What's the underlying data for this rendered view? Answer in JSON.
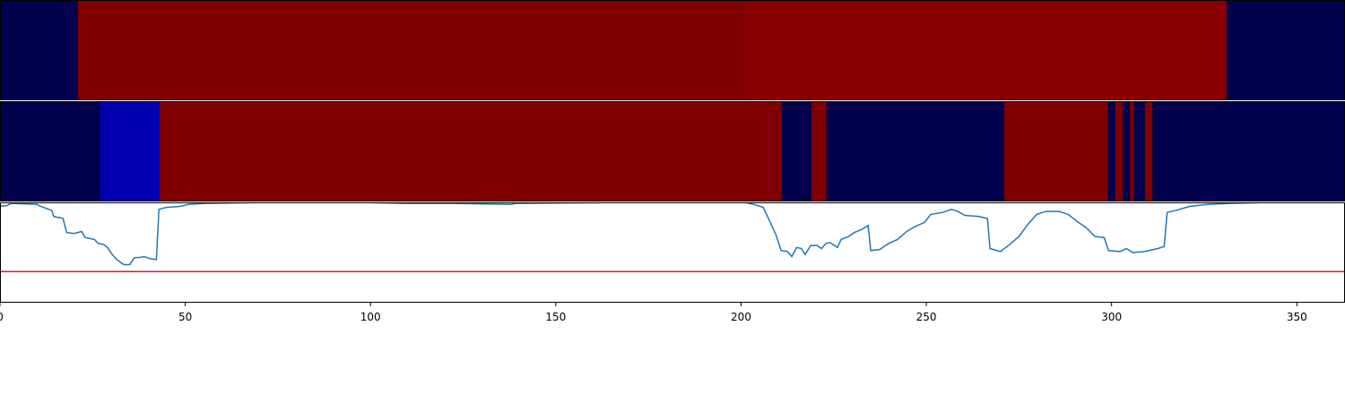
{
  "chart_data": [
    {
      "type": "strip",
      "xlim": [
        0,
        363
      ],
      "bins": [
        0,
        21,
        201,
        331,
        363
      ],
      "colors": [
        "#00004c",
        "#7f0000",
        "#8a0000",
        "#00004c"
      ]
    },
    {
      "type": "strip",
      "xlim": [
        0,
        363
      ],
      "bins": [
        0,
        27,
        43,
        211,
        219,
        223,
        271,
        299,
        301,
        303,
        305,
        306,
        309,
        311,
        363
      ],
      "colors": [
        "#00004c",
        "#0000b0",
        "#7f0000",
        "#00004c",
        "#7f0000",
        "#00004c",
        "#7f0000",
        "#00004c",
        "#7f0000",
        "#00004c",
        "#7f0000",
        "#00004c",
        "#7f0000",
        "#00004c"
      ]
    },
    {
      "type": "line",
      "xlim": [
        0,
        363
      ],
      "ylim": [
        0,
        1
      ],
      "xticks": [
        0,
        50,
        100,
        150,
        200,
        250,
        300,
        350
      ],
      "x": [
        0,
        2,
        3,
        10,
        11,
        14,
        14.5,
        17,
        18,
        20,
        22,
        23,
        25.5,
        26.5,
        28,
        29,
        30.3,
        31.5,
        33.4,
        35,
        36.3,
        37.5,
        38.8,
        40.5,
        42.2,
        42.9,
        44.8,
        48.5,
        50.9,
        55.7,
        72.7,
        97,
        109,
        121,
        138,
        139,
        170,
        201,
        203.5,
        206,
        207.4,
        209.5,
        210.8,
        212.5,
        213.7,
        215,
        216.3,
        217.3,
        218.8,
        220.5,
        221.7,
        222.9,
        224,
        226,
        227,
        229,
        230.6,
        232.6,
        234.3,
        235,
        237.4,
        239.8,
        242.2,
        244.7,
        247,
        249.5,
        251.2,
        254.4,
        256.8,
        258.5,
        260.4,
        264,
        266.5,
        267.2,
        270,
        272.5,
        275,
        277.4,
        279.8,
        282.2,
        285.9,
        288.3,
        290.7,
        293.1,
        295.5,
        298,
        299.2,
        302.3,
        304,
        305.7,
        308.9,
        312.5,
        314.2,
        315,
        317.4,
        321,
        325.8,
        331.9,
        344,
        363
      ],
      "series": [
        {
          "color": "#1f77b4",
          "values": [
            0.96,
            0.97,
            0.99,
            0.98,
            0.96,
            0.92,
            0.86,
            0.84,
            0.7,
            0.69,
            0.71,
            0.65,
            0.63,
            0.59,
            0.58,
            0.55,
            0.48,
            0.43,
            0.38,
            0.38,
            0.45,
            0.45,
            0.46,
            0.44,
            0.43,
            0.93,
            0.95,
            0.96,
            0.98,
            0.99,
            1.0,
            1.0,
            0.99,
            0.99,
            0.98,
            0.99,
            1.0,
            1.0,
            0.98,
            0.95,
            0.84,
            0.67,
            0.52,
            0.51,
            0.46,
            0.55,
            0.54,
            0.48,
            0.57,
            0.57,
            0.54,
            0.59,
            0.6,
            0.55,
            0.63,
            0.66,
            0.7,
            0.73,
            0.77,
            0.52,
            0.53,
            0.59,
            0.63,
            0.71,
            0.76,
            0.8,
            0.88,
            0.9,
            0.93,
            0.91,
            0.87,
            0.86,
            0.84,
            0.54,
            0.51,
            0.58,
            0.66,
            0.78,
            0.88,
            0.91,
            0.91,
            0.88,
            0.81,
            0.75,
            0.66,
            0.65,
            0.52,
            0.51,
            0.54,
            0.5,
            0.51,
            0.54,
            0.56,
            0.9,
            0.92,
            0.96,
            0.98,
            0.99,
            1.0,
            1.0
          ]
        }
      ],
      "hlines": [
        {
          "value": 0.31,
          "color": "#e8141a"
        }
      ]
    }
  ]
}
